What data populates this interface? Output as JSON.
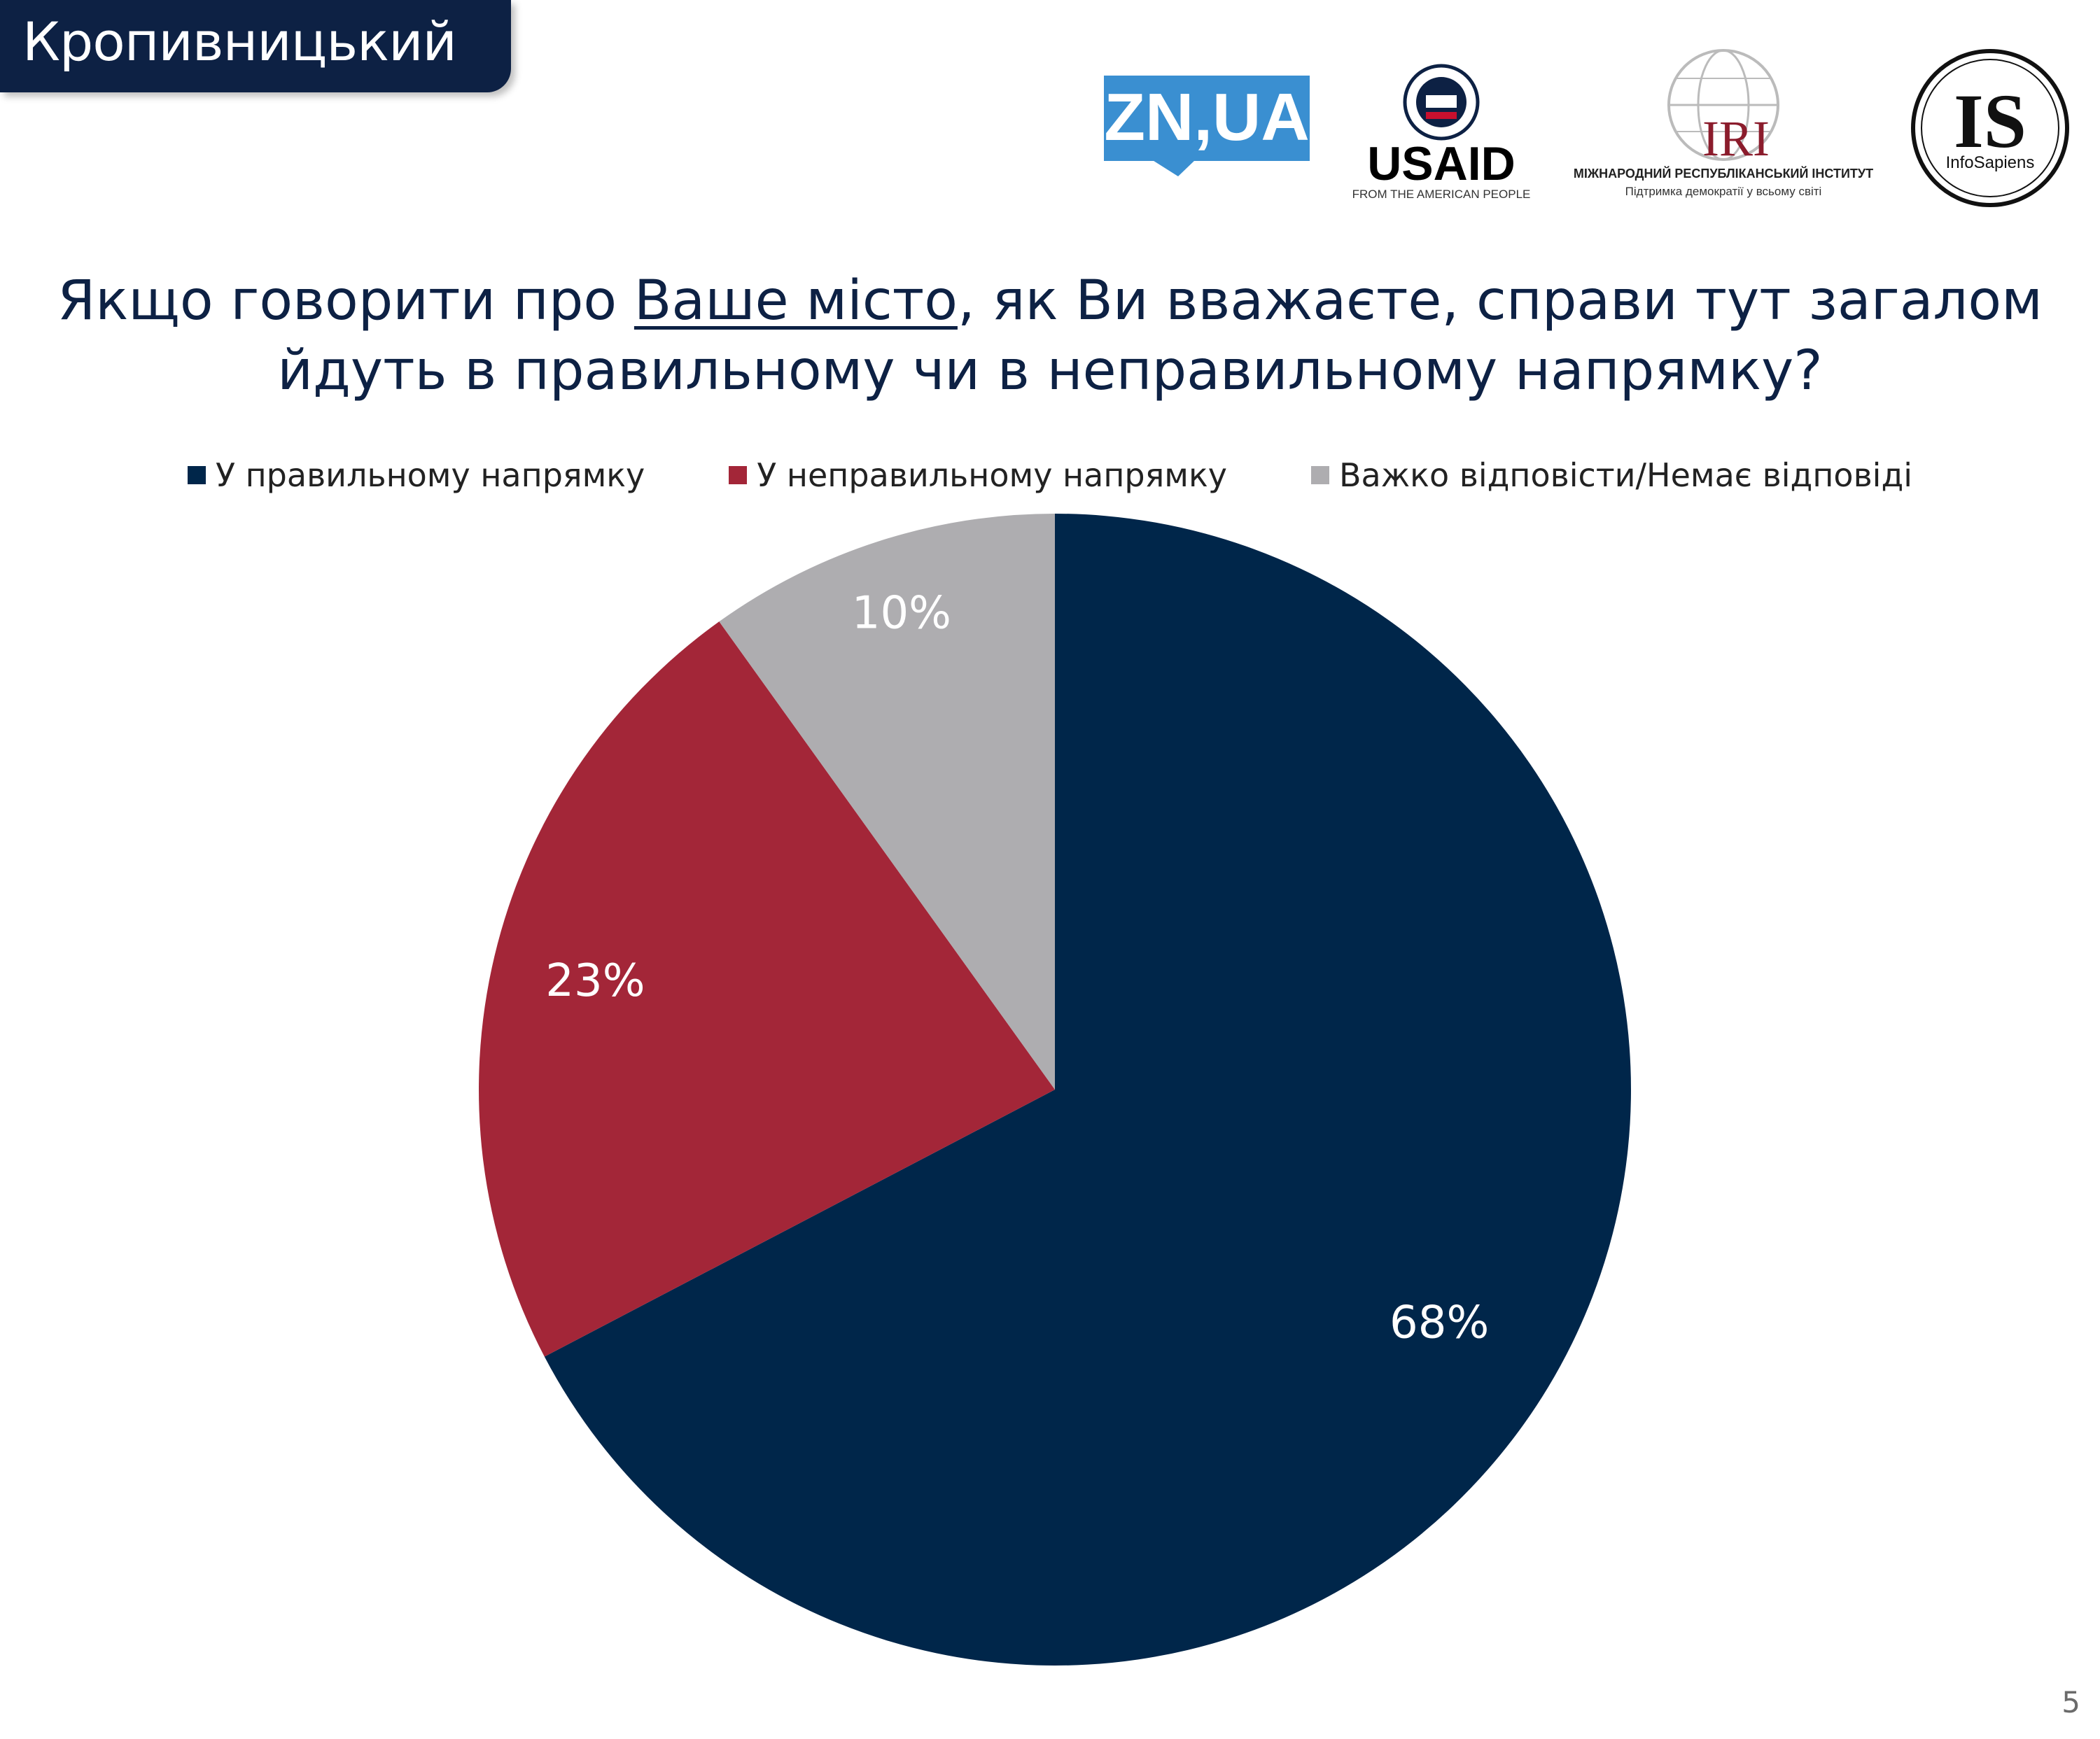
{
  "header": {
    "city": "Кропивницький",
    "question_part1": "Якщо говорити про ",
    "question_underlined": "Ваше місто",
    "question_part2": ", як Ви вважаєте, справи тут загалом",
    "question_line2": "йдуть в правильному чи в неправильному напрямку?"
  },
  "logos": {
    "zn": "ZN,UA",
    "usaid_text": "USAID",
    "usaid_tag": "FROM THE AMERICAN PEOPLE",
    "iri": "IRI",
    "iri_line1": "МІЖНАРОДНИЙ РЕСПУБЛІКАНСЬКИЙ ІНСТИТУТ",
    "iri_line2": "Підтримка демократії у всьому світі",
    "is_big": "IS",
    "is_small": "InfoSapiens"
  },
  "page_number": "5",
  "colors": {
    "navy": "#00264a",
    "red": "#a32638",
    "gray": "#aeadb0"
  },
  "chart_data": {
    "type": "pie",
    "title": "Якщо говорити про Ваше місто, як Ви вважаєте, справи тут загалом йдуть в правильному чи в неправильному напрямку?",
    "legend_position": "top",
    "slices": [
      {
        "label": "У правильному напрямку",
        "value": 68,
        "display": "68%",
        "color": "#00264a"
      },
      {
        "label": "У неправильному напрямку",
        "value": 23,
        "display": "23%",
        "color": "#a32638"
      },
      {
        "label": "Важко відповісти/Немає відповіді",
        "value": 10,
        "display": "10%",
        "color": "#aeadb0"
      }
    ]
  }
}
